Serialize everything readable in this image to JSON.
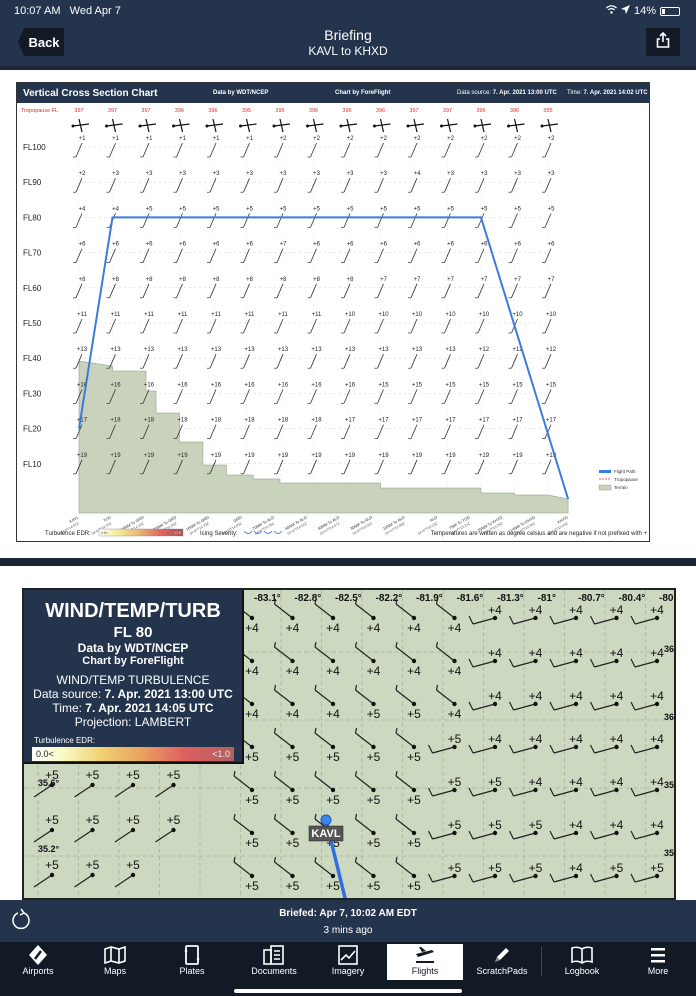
{
  "status_bar": {
    "time": "10:07 AM",
    "date": "Wed Apr 7",
    "battery": "14%"
  },
  "nav": {
    "back_label": "Back",
    "title": "Briefing",
    "subtitle": "KAVL to KHXD",
    "share_icon": "share-icon"
  },
  "cross_section": {
    "title": "Vertical Cross Section Chart",
    "data_by": "Data by WDT/NCEP",
    "chart_by": "Chart by ForeFlight",
    "data_source_label": "Data source:",
    "data_source_value": "7. Apr. 2021 13:00 UTC",
    "time_label": "Time:",
    "time_value": "7. Apr. 2021 14:02 UTC",
    "tropopause_label": "Tropopause FL",
    "tropopause_values": [
      "397",
      "397",
      "397",
      "396",
      "396",
      "395",
      "395",
      "396",
      "396",
      "396",
      "397",
      "397",
      "396",
      "396",
      "395"
    ],
    "flight_levels": [
      "FL100",
      "FL90",
      "FL80",
      "FL70",
      "FL60",
      "FL50",
      "FL40",
      "FL30",
      "FL20",
      "FL10"
    ],
    "temperatures": [
      [
        "+1",
        "+1",
        "+1",
        "+1",
        "+1",
        "+1",
        "+2",
        "+2",
        "+2",
        "+2",
        "+2",
        "+2",
        "+2",
        "+2",
        "+2"
      ],
      [
        "+2",
        "+3",
        "+3",
        "+3",
        "+3",
        "+3",
        "+3",
        "+3",
        "+3",
        "+3",
        "+4",
        "+3",
        "+3",
        "+3",
        "+3"
      ],
      [
        "+4",
        "+4",
        "+5",
        "+5",
        "+5",
        "+5",
        "+5",
        "+5",
        "+5",
        "+5",
        "+5",
        "+5",
        "+5",
        "+5",
        "+5"
      ],
      [
        "+6",
        "+6",
        "+6",
        "+6",
        "+6",
        "+6",
        "+7",
        "+6",
        "+6",
        "+6",
        "+6",
        "+6",
        "+6",
        "+6",
        "+6"
      ],
      [
        "+8",
        "+8",
        "+8",
        "+8",
        "+8",
        "+8",
        "+8",
        "+8",
        "+8",
        "+7",
        "+7",
        "+7",
        "+7",
        "+7",
        "+7"
      ],
      [
        "+11",
        "+11",
        "+11",
        "+11",
        "+11",
        "+11",
        "+11",
        "+11",
        "+10",
        "+10",
        "+10",
        "+10",
        "+10",
        "+10",
        "+10"
      ],
      [
        "+13",
        "+13",
        "+13",
        "+13",
        "+13",
        "+13",
        "+13",
        "+13",
        "+13",
        "+13",
        "+13",
        "+13",
        "+12",
        "+12",
        "+12"
      ],
      [
        "+16",
        "+16",
        "+16",
        "+16",
        "+16",
        "+16",
        "+16",
        "+16",
        "+16",
        "+15",
        "+15",
        "+15",
        "+15",
        "+15",
        "+15"
      ],
      [
        "+17",
        "+18",
        "+18",
        "+18",
        "+18",
        "+18",
        "+18",
        "+18",
        "+17",
        "+17",
        "+17",
        "+17",
        "+17",
        "+17",
        "+17"
      ],
      [
        "+19",
        "+19",
        "+19",
        "+19",
        "+19",
        "+19",
        "+19",
        "+19",
        "+19",
        "+19",
        "+19",
        "+19",
        "+19",
        "+19",
        "+19"
      ]
    ],
    "waypoints": [
      {
        "name": "KAVL",
        "time": "04-07T14:02Z"
      },
      {
        "name": "TOC",
        "time": "04-07T14:14Z"
      },
      {
        "name": "40NM To GRD",
        "time": "04-07T14:20Z"
      },
      {
        "name": "30NM To GRD",
        "time": "04-07T14:26Z"
      },
      {
        "name": "10NM To GRD",
        "time": "04-07T14:33Z"
      },
      {
        "name": "GRD",
        "time": "04-07T14:40Z"
      },
      {
        "name": "70NM To ALD",
        "time": "04-07T14:46Z"
      },
      {
        "name": "50NM To ALD",
        "time": "04-07T14:51Z"
      },
      {
        "name": "40NM To ALD",
        "time": "04-07T14:57Z"
      },
      {
        "name": "30NM To ALD",
        "time": "04-07T15:02Z"
      },
      {
        "name": "10NM To ALD",
        "time": "04-07T15:08Z"
      },
      {
        "name": "ALD",
        "time": "04-07T15:13Z"
      },
      {
        "name": "7NM To TOD",
        "time": "04-07T15:21Z"
      },
      {
        "name": "20NM To KHXD",
        "time": "04-07T15:29Z"
      },
      {
        "name": "14NM To KHXD",
        "time": "04-07T15:34Z"
      },
      {
        "name": "KHXD",
        "time": "04-07T15:40Z"
      }
    ],
    "legend": {
      "flight_path": "Flight Path",
      "tropopause": "Tropopause",
      "terrain": "Terrain"
    },
    "turbulence_label": "Turbulence EDR:",
    "turbulence_min": "0.0<",
    "turbulence_max": "<1.0",
    "icing_label": "Icing Severity:",
    "footnote": "Temperatures are written as degree celsius and are negative if not prefixed with +",
    "colors": {
      "header": "#24344d",
      "flight_path": "#3a7be0",
      "terrain": "#c9d3bb",
      "tropopause": "#d83030"
    }
  },
  "wind_map": {
    "title": "WIND/TEMP/TURB",
    "level": "FL 80",
    "data_by": "Data by WDT/NCEP",
    "chart_by": "Chart by ForeFlight",
    "subtitle": "WIND/TEMP TURBULENCE",
    "data_source_label": "Data source:",
    "data_source_value": "7. Apr. 2021 13:00 UTC",
    "time_label": "Time:",
    "time_value": "7. Apr. 2021 14:05 UTC",
    "projection": "Projection: LAMBERT",
    "turbulence_label": "Turbulence EDR:",
    "turbulence_min": "0.0<",
    "turbulence_max": "<1.0",
    "longitudes": [
      "-83.1°",
      "-82.8°",
      "-82.5°",
      "-82.2°",
      "-81.9°",
      "-81.6°",
      "-81.3°",
      "-81°",
      "-80.7°",
      "-80.4°",
      "-80"
    ],
    "latitudes": [
      "36.",
      "36°",
      "35.",
      "35."
    ],
    "left_lat_labels": [
      "35.6°",
      "35.2°"
    ],
    "airport_label": "KAVL",
    "temps_rows": [
      [
        "+4",
        "+4",
        "+4",
        "+4",
        "+4",
        "+4",
        "+4",
        "+4",
        "+4",
        "+4",
        "+4"
      ],
      [
        "+4",
        "+4",
        "+4",
        "+4",
        "+4",
        "+4",
        "+4",
        "+4",
        "+4",
        "+4",
        "+4"
      ],
      [
        "+4",
        "+4",
        "+4",
        "+5",
        "+5",
        "+4",
        "+4",
        "+4",
        "+4",
        "+4",
        "+4"
      ],
      [
        "+5",
        "+5",
        "+5",
        "+5",
        "+5",
        "+5",
        "+4",
        "+4",
        "+4",
        "+4",
        "+4"
      ],
      [
        "+5",
        "+5",
        "+5",
        "+5",
        "+5",
        "+5",
        "+5",
        "+4",
        "+4",
        "+4",
        "+4"
      ],
      [
        "+5",
        "+5",
        "+5",
        "+5",
        "+5",
        "+5",
        "+5",
        "+5",
        "+4",
        "+4",
        "+4"
      ],
      [
        "+5",
        "+5",
        "+5",
        "+5",
        "+5",
        "+5",
        "+5",
        "+5",
        "+4",
        "+5",
        "+5"
      ]
    ]
  },
  "briefed": {
    "text": "Briefed: Apr 7, 10:02 AM EDT",
    "ago": "3 mins ago"
  },
  "tabs": [
    {
      "label": "Airports",
      "icon": "airports-icon"
    },
    {
      "label": "Maps",
      "icon": "maps-icon"
    },
    {
      "label": "Plates",
      "icon": "plates-icon"
    },
    {
      "label": "Documents",
      "icon": "documents-icon"
    },
    {
      "label": "Imagery",
      "icon": "imagery-icon"
    },
    {
      "label": "Flights",
      "icon": "flights-icon",
      "active": true
    },
    {
      "label": "ScratchPads",
      "icon": "scratchpads-icon"
    },
    {
      "label": "Logbook",
      "icon": "logbook-icon"
    },
    {
      "label": "More",
      "icon": "more-icon"
    }
  ]
}
